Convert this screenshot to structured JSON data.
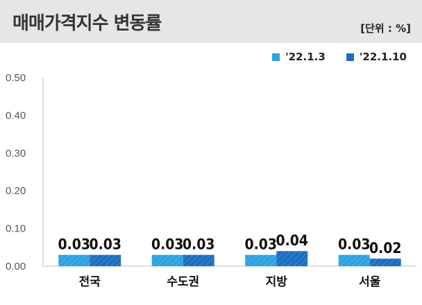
{
  "header": {
    "title": "매매가격지수 변동률",
    "unit": "[단위 : %]"
  },
  "colors": {
    "series1": "#29a3e3",
    "series2": "#1a6fc4",
    "header_bg": "#e6e6e6"
  },
  "chart_data": {
    "type": "bar",
    "categories": [
      "전국",
      "수도권",
      "지방",
      "서울"
    ],
    "series": [
      {
        "name": "'22.1.3",
        "values": [
          0.03,
          0.03,
          0.03,
          0.03
        ]
      },
      {
        "name": "'22.1.10",
        "values": [
          0.03,
          0.03,
          0.04,
          0.02
        ]
      }
    ],
    "data_labels": [
      [
        "0.03",
        "0.03",
        "0.03",
        "0.03"
      ],
      [
        "0.03",
        "0.03",
        "0.04",
        "0.02"
      ]
    ],
    "ylim": [
      0,
      0.5
    ],
    "yticks": [
      "0.00",
      "0.10",
      "0.20",
      "0.30",
      "0.40",
      "0.50"
    ],
    "legend_position": "top-right",
    "grid": false
  }
}
